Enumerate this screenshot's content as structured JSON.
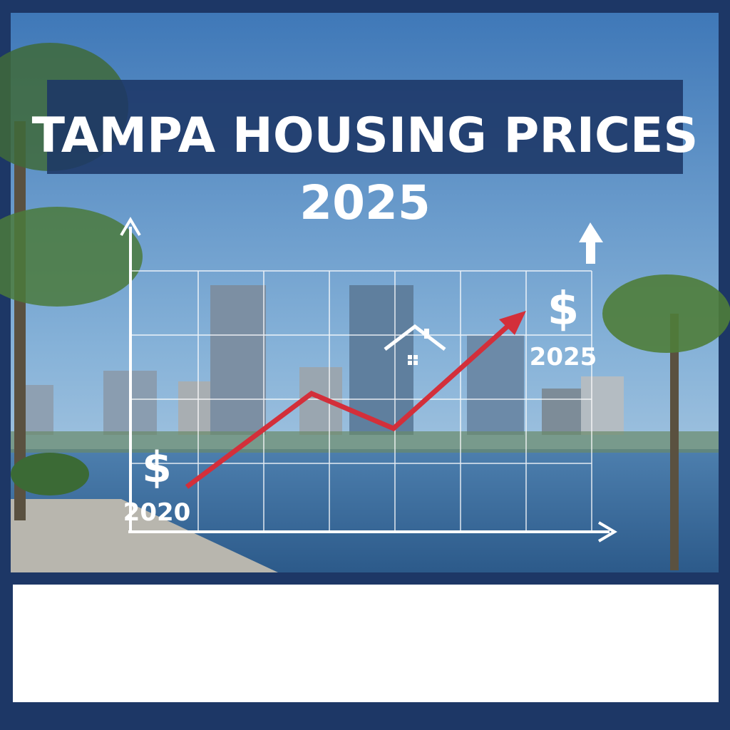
{
  "title": "TAMPA HOUSING PRICES",
  "subtitle": "2025",
  "start_marker": {
    "symbol": "$",
    "label": "2020"
  },
  "end_marker": {
    "symbol": "$",
    "label": "2025"
  }
}
